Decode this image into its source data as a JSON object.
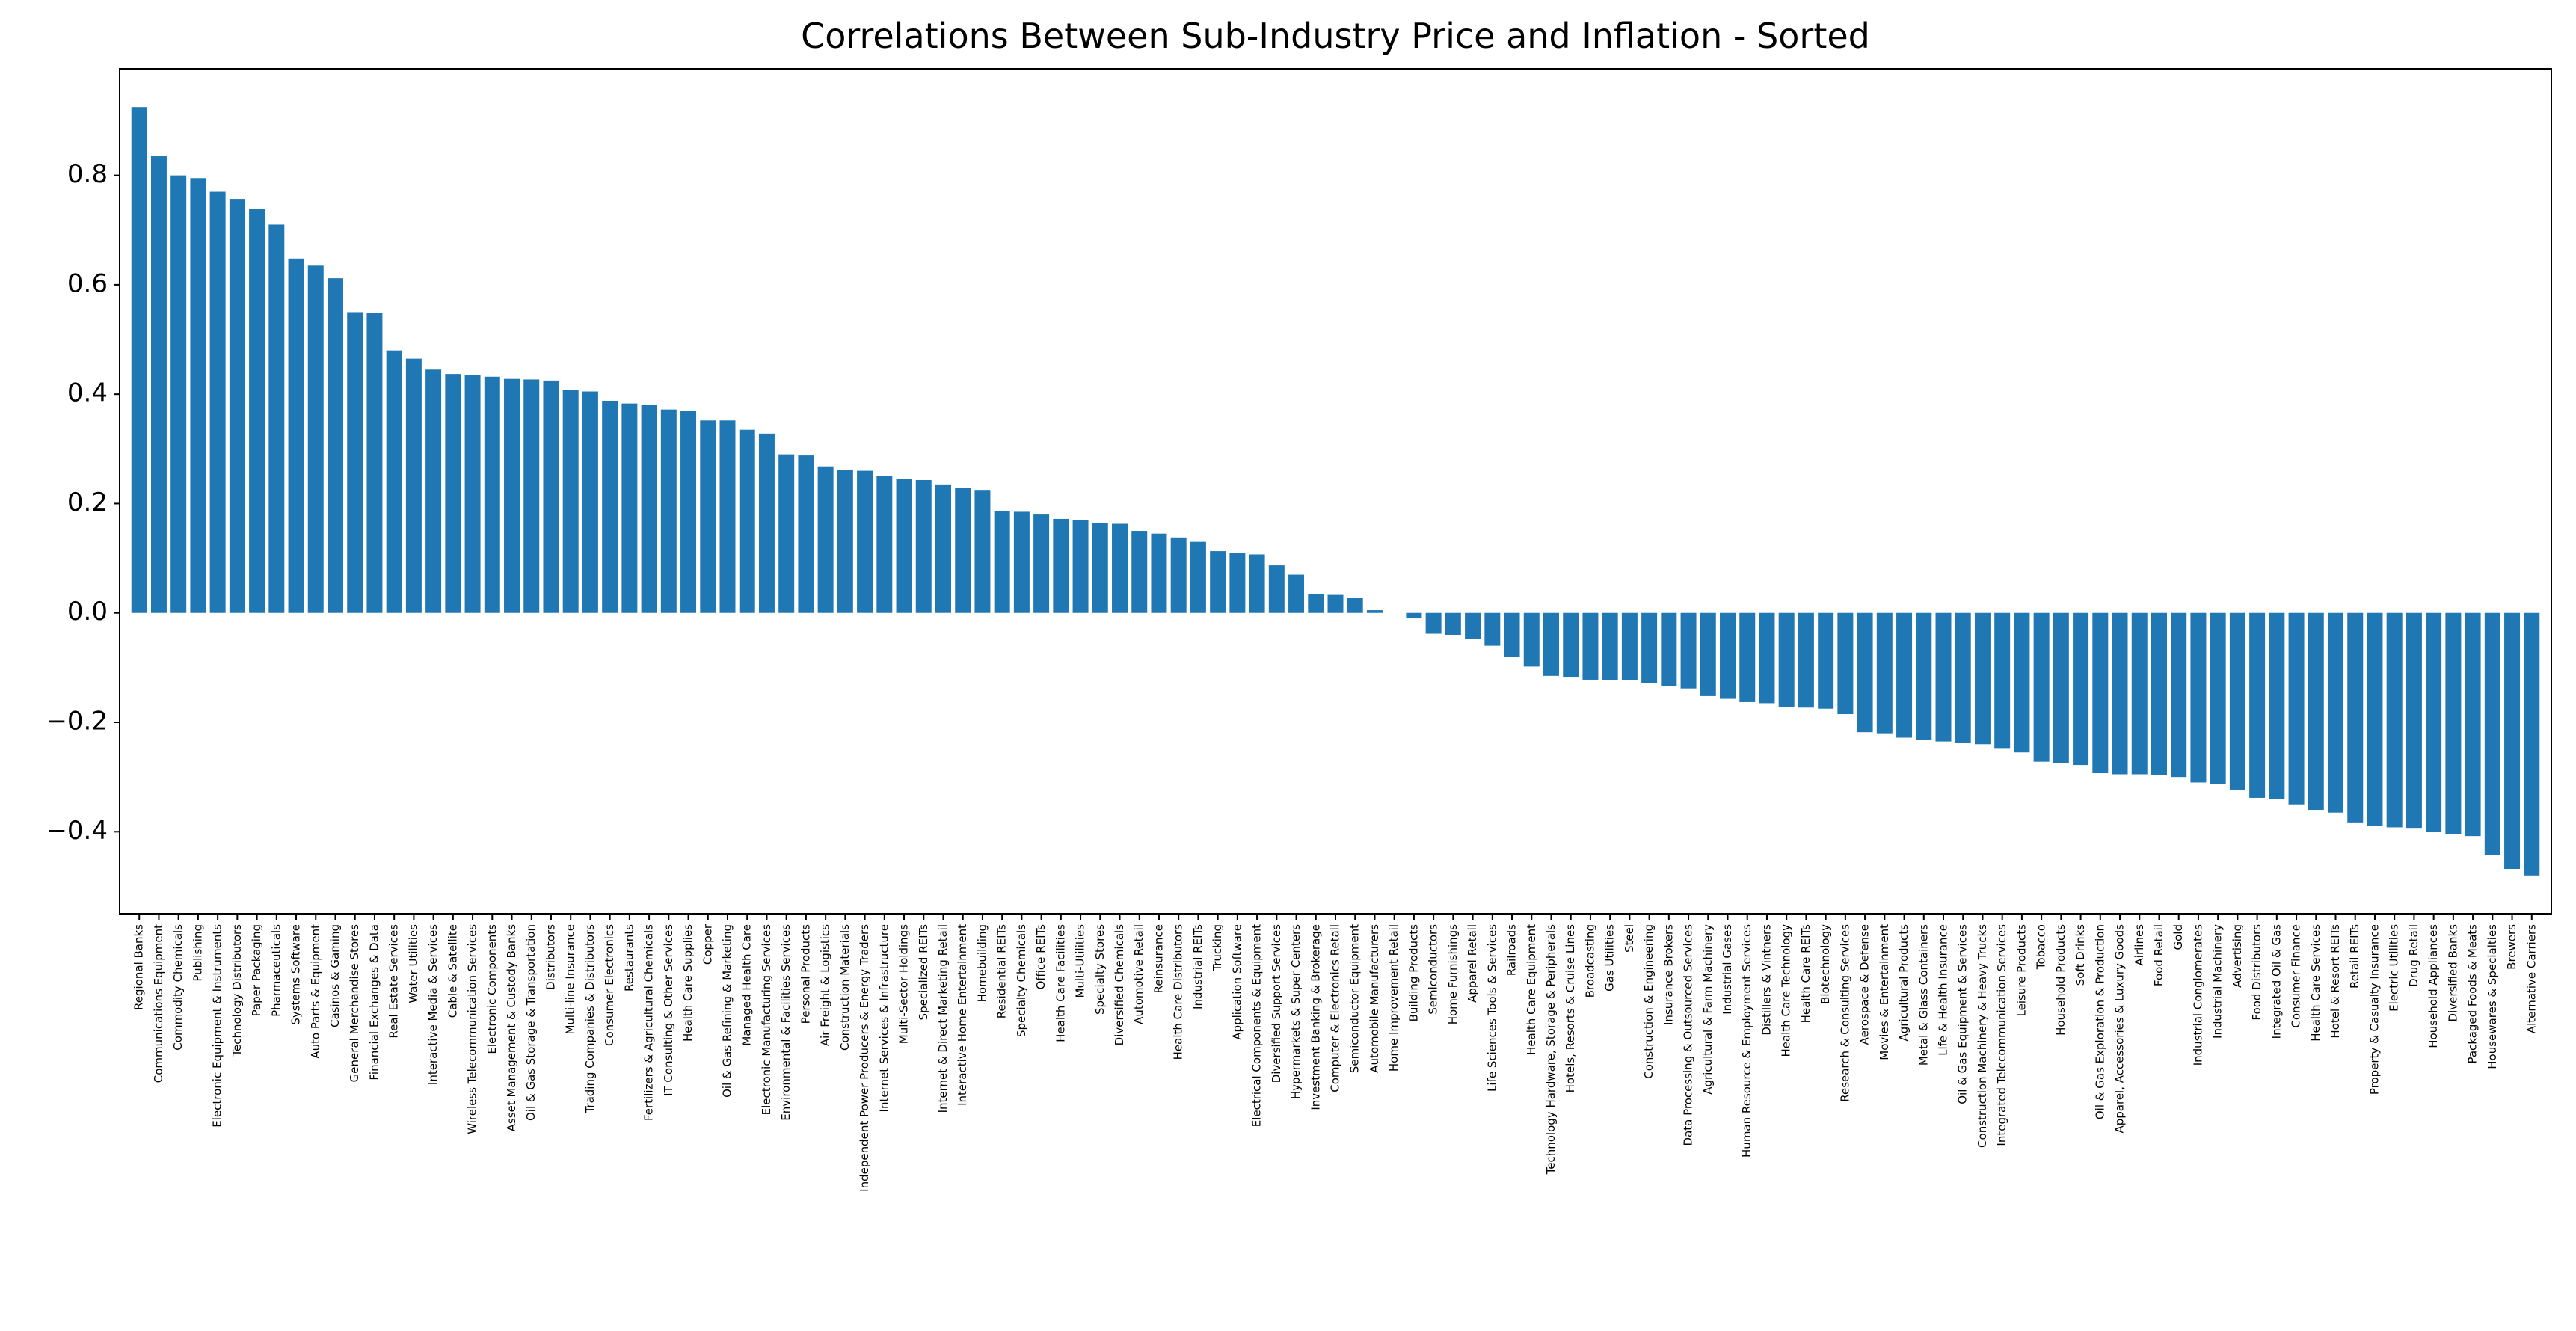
{
  "chart_data": {
    "type": "bar",
    "title": "Correlations Between Sub-Industry Price and Inflation - Sorted",
    "color": "#1f77b4",
    "categories": [
      "Regional Banks",
      "Communications Equipment",
      "Commodity Chemicals",
      "Publishing",
      "Electronic Equipment & Instruments",
      "Technology Distributors",
      "Paper Packaging",
      "Pharmaceuticals",
      "Systems Software",
      "Auto Parts & Equipment",
      "Casinos & Gaming",
      "General Merchandise Stores",
      "Financial Exchanges & Data",
      "Real Estate Services",
      "Water Utilities",
      "Interactive Media & Services",
      "Cable & Satellite",
      "Wireless Telecommunication Services",
      "Electronic Components",
      "Asset Management & Custody Banks",
      "Oil & Gas Storage & Transportation",
      "Distributors",
      "Multi-line Insurance",
      "Trading Companies & Distributors",
      "Consumer Electronics",
      "Restaurants",
      "Fertilizers & Agricultural Chemicals",
      "IT Consulting & Other Services",
      "Health Care Supplies",
      "Copper",
      "Oil & Gas Refining & Marketing",
      "Managed Health Care",
      "Electronic Manufacturing Services",
      "Environmental & Facilities Services",
      "Personal Products",
      "Air Freight & Logistics",
      "Construction Materials",
      "Independent Power Producers & Energy Traders",
      "Internet Services & Infrastructure",
      "Multi-Sector Holdings",
      "Specialized REITs",
      "Internet & Direct Marketing Retail",
      "Interactive Home Entertainment",
      "Homebuilding",
      "Residential REITs",
      "Specialty Chemicals",
      "Office REITs",
      "Health Care Facilities",
      "Multi-Utilities",
      "Specialty Stores",
      "Diversified Chemicals",
      "Automotive Retail",
      "Reinsurance",
      "Health Care Distributors",
      "Industrial REITs",
      "Trucking",
      "Application Software",
      "Electrical Components & Equipment",
      "Diversified Support Services",
      "Hypermarkets & Super Centers",
      "Investment Banking & Brokerage",
      "Computer & Electronics Retail",
      "Semiconductor Equipment",
      "Automobile Manufacturers",
      "Home Improvement Retail",
      "Building Products",
      "Semiconductors",
      "Home Furnishings",
      "Apparel Retail",
      "Life Sciences Tools & Services",
      "Railroads",
      "Health Care Equipment",
      "Technology Hardware, Storage & Peripherals",
      "Hotels, Resorts & Cruise Lines",
      "Broadcasting",
      "Gas Utilities",
      "Steel",
      "Construction & Engineering",
      "Insurance Brokers",
      "Data Processing & Outsourced Services",
      "Agricultural & Farm Machinery",
      "Industrial Gases",
      "Human Resource & Employment Services",
      "Distillers & Vintners",
      "Health Care Technology",
      "Health Care REITs",
      "Biotechnology",
      "Research & Consulting Services",
      "Aerospace & Defense",
      "Movies & Entertainment",
      "Agricultural Products",
      "Metal & Glass Containers",
      "Life & Health Insurance",
      "Oil & Gas Equipment & Services",
      "Construction Machinery & Heavy Trucks",
      "Integrated Telecommunication Services",
      "Leisure Products",
      "Tobacco",
      "Household Products",
      "Soft Drinks",
      "Oil & Gas Exploration & Production",
      "Apparel, Accessories & Luxury Goods",
      "Airlines",
      "Food Retail",
      "Gold",
      "Industrial Conglomerates",
      "Industrial Machinery",
      "Advertising",
      "Food Distributors",
      "Integrated Oil & Gas",
      "Consumer Finance",
      "Health Care Services",
      "Hotel & Resort REITs",
      "Retail REITs",
      "Property & Casualty Insurance",
      "Electric Utilities",
      "Drug Retail",
      "Household Appliances",
      "Diversified Banks",
      "Packaged Foods & Meats",
      "Housewares & Specialties",
      "Brewers",
      "Alternative Carriers"
    ],
    "values": [
      0.925,
      0.835,
      0.8,
      0.795,
      0.77,
      0.757,
      0.738,
      0.71,
      0.648,
      0.635,
      0.612,
      0.55,
      0.548,
      0.48,
      0.465,
      0.445,
      0.437,
      0.435,
      0.432,
      0.428,
      0.427,
      0.425,
      0.408,
      0.405,
      0.388,
      0.383,
      0.38,
      0.372,
      0.37,
      0.352,
      0.352,
      0.335,
      0.328,
      0.29,
      0.288,
      0.268,
      0.262,
      0.26,
      0.25,
      0.245,
      0.243,
      0.235,
      0.228,
      0.225,
      0.187,
      0.185,
      0.18,
      0.172,
      0.17,
      0.165,
      0.163,
      0.15,
      0.145,
      0.138,
      0.13,
      0.113,
      0.11,
      0.107,
      0.087,
      0.07,
      0.035,
      0.033,
      0.027,
      0.005,
      0.0,
      -0.01,
      -0.038,
      -0.04,
      -0.048,
      -0.06,
      -0.08,
      -0.098,
      -0.115,
      -0.118,
      -0.122,
      -0.123,
      -0.123,
      -0.128,
      -0.133,
      -0.138,
      -0.152,
      -0.157,
      -0.163,
      -0.165,
      -0.172,
      -0.173,
      -0.175,
      -0.185,
      -0.218,
      -0.22,
      -0.228,
      -0.232,
      -0.235,
      -0.237,
      -0.24,
      -0.247,
      -0.255,
      -0.272,
      -0.275,
      -0.278,
      -0.293,
      -0.295,
      -0.295,
      -0.297,
      -0.3,
      -0.31,
      -0.313,
      -0.323,
      -0.338,
      -0.34,
      -0.35,
      -0.36,
      -0.365,
      -0.383,
      -0.39,
      -0.392,
      -0.393,
      -0.4,
      -0.405,
      -0.408,
      -0.443,
      -0.468,
      -0.48
    ],
    "ylim": [
      -0.55,
      0.995
    ],
    "yticks": [
      {
        "value": -0.4,
        "label": "−0.4"
      },
      {
        "value": -0.2,
        "label": "−0.2"
      },
      {
        "value": 0,
        "label": "0.0"
      },
      0.2,
      0.4,
      0.6,
      0.8
    ]
  }
}
